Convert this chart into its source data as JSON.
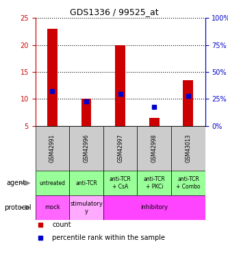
{
  "title": "GDS1336 / 99525_at",
  "samples": [
    "GSM42991",
    "GSM42996",
    "GSM42997",
    "GSM42998",
    "GSM43013"
  ],
  "count_values": [
    23,
    10,
    20,
    6.5,
    13.5
  ],
  "count_bottom": [
    5,
    5,
    5,
    5,
    5
  ],
  "percentile_values": [
    11.5,
    9.5,
    11,
    8.5,
    10.5
  ],
  "ylim_left": [
    5,
    25
  ],
  "ylim_right": [
    0,
    100
  ],
  "yticks_left": [
    5,
    10,
    15,
    20,
    25
  ],
  "yticks_right": [
    0,
    25,
    50,
    75,
    100
  ],
  "agent_labels": [
    "untreated",
    "anti-TCR",
    "anti-TCR\n+ CsA",
    "anti-TCR\n+ PKCi",
    "anti-TCR\n+ Combo"
  ],
  "bar_color": "#cc0000",
  "dot_color": "#0000cc",
  "left_axis_color": "#cc0000",
  "right_axis_color": "#0000cc",
  "sample_bg_color": "#cccccc",
  "agent_bg_color": "#99ff99",
  "mock_bg_color": "#ff66ff",
  "stimulatory_bg_color": "#ff99ff",
  "inhibitory_bg_color": "#ff66ff",
  "legend_count_label": "count",
  "legend_pct_label": "percentile rank within the sample",
  "proto_groups": [
    {
      "label": "mock",
      "start": 0,
      "end": 1,
      "color": "#ff66ff"
    },
    {
      "label": "stimulatory\ny",
      "start": 1,
      "end": 2,
      "color": "#ffaaff"
    },
    {
      "label": "inhibitory",
      "start": 2,
      "end": 5,
      "color": "#ff44ff"
    }
  ]
}
